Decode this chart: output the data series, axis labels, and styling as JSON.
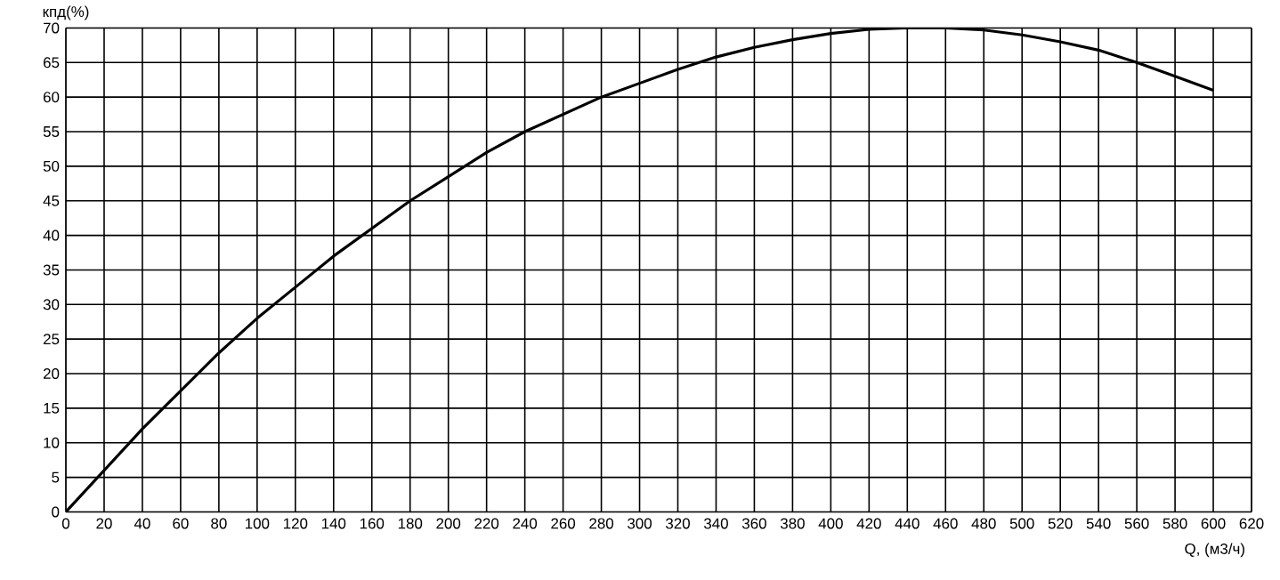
{
  "chart_data": {
    "type": "line",
    "xlabel": "Q, (м3/ч)",
    "ylabel": "кпд(%)",
    "xlim": [
      0,
      620
    ],
    "ylim": [
      0,
      70
    ],
    "xticks": [
      0,
      20,
      40,
      60,
      80,
      100,
      120,
      140,
      160,
      180,
      200,
      220,
      240,
      260,
      280,
      300,
      320,
      340,
      360,
      380,
      400,
      420,
      440,
      460,
      480,
      500,
      520,
      540,
      560,
      580,
      600,
      620
    ],
    "yticks": [
      0,
      5,
      10,
      15,
      20,
      25,
      30,
      35,
      40,
      45,
      50,
      55,
      60,
      65,
      70
    ],
    "grid": true,
    "marker": "none",
    "line_style": "solid",
    "series": [
      {
        "color": "#000000",
        "x": [
          0,
          20,
          40,
          60,
          80,
          100,
          120,
          140,
          160,
          180,
          200,
          220,
          240,
          260,
          280,
          300,
          320,
          340,
          360,
          380,
          400,
          420,
          440,
          460,
          480,
          500,
          520,
          540,
          560,
          580,
          600
        ],
        "values": [
          0,
          6,
          12,
          17.5,
          23,
          28,
          32.5,
          37,
          41,
          45,
          48.5,
          52,
          55,
          57.5,
          60,
          62,
          64,
          65.8,
          67.2,
          68.3,
          69.2,
          69.8,
          70,
          70,
          69.7,
          69,
          68,
          66.8,
          65,
          63,
          61
        ]
      }
    ]
  }
}
